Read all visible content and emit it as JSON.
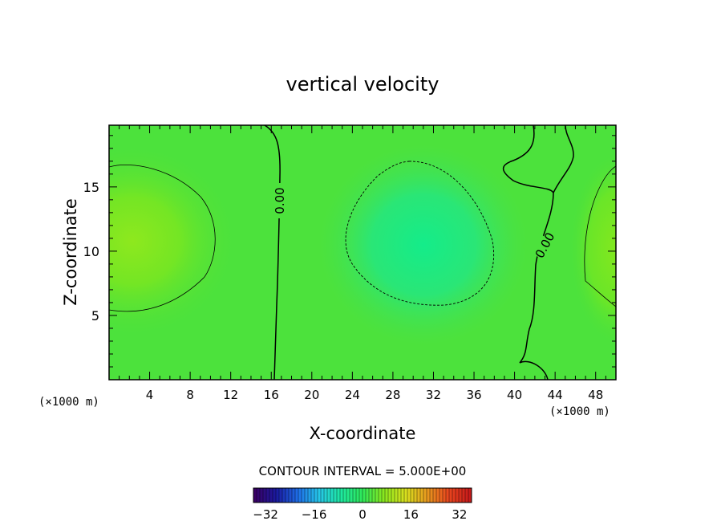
{
  "chart_data": {
    "type": "heatmap",
    "title": "vertical velocity",
    "xlabel": "X-coordinate",
    "ylabel": "Z-coordinate",
    "x_unit_left": "(×1000 m)",
    "x_unit_right": "(×1000 m)",
    "xlim": [
      0,
      50
    ],
    "ylim": [
      0,
      19.8
    ],
    "x_ticks": [
      "4",
      "8",
      "12",
      "16",
      "20",
      "24",
      "28",
      "32",
      "36",
      "40",
      "44",
      "48"
    ],
    "y_ticks": [
      "5",
      "10",
      "15"
    ],
    "contour_interval_text": "CONTOUR INTERVAL = 5.000E+00",
    "contour_labels": [
      "0.00",
      "0.00"
    ],
    "colorbar": {
      "ticks": [
        "-32",
        "-16",
        "0",
        "16",
        "32"
      ],
      "range": [
        -36,
        36
      ],
      "palette": [
        "#3a0066",
        "#1a1aa0",
        "#1e6ee8",
        "#26c8e8",
        "#1ee8a0",
        "#2ee85a",
        "#8ae81e",
        "#d8e01e",
        "#e89a1e",
        "#e8461e",
        "#c81a1a"
      ]
    },
    "field_features": [
      {
        "label": "positive maximum",
        "x": 2,
        "z": 11,
        "value": 7
      },
      {
        "label": "negative minimum",
        "x": 31,
        "z": 10,
        "value": -6
      },
      {
        "label": "positive maximum",
        "x": 50,
        "z": 10.5,
        "value": 6
      }
    ],
    "grid": false
  }
}
